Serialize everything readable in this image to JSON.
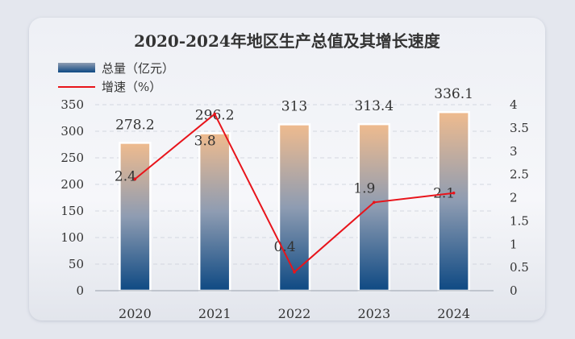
{
  "chart_data": {
    "type": "bar",
    "title": "2020-2024年地区生产总值及其增长速度",
    "categories": [
      "2020",
      "2021",
      "2022",
      "2023",
      "2024"
    ],
    "series": [
      {
        "name": "总量（亿元）",
        "type": "bar",
        "axis": "left",
        "values": [
          278.2,
          296.2,
          313,
          313.4,
          336.1
        ],
        "labels": [
          "278.2",
          "296.2",
          "313",
          "313.4",
          "336.1"
        ]
      },
      {
        "name": "增速（%）",
        "type": "line",
        "axis": "right",
        "values": [
          2.4,
          3.8,
          0.4,
          1.9,
          2.1
        ],
        "labels": [
          "2.4",
          "3.8",
          "0.4",
          "1.9",
          "2.1"
        ]
      }
    ],
    "y_left": {
      "min": 0,
      "max": 350,
      "ticks": [
        "0",
        "50",
        "100",
        "150",
        "200",
        "250",
        "300",
        "350"
      ]
    },
    "y_right": {
      "min": 0,
      "max": 4,
      "ticks": [
        "0",
        "0.5",
        "1",
        "1.5",
        "2",
        "2.5",
        "3",
        "3.5",
        "4"
      ]
    },
    "gridlines": true,
    "legend_position": "top-left",
    "colors": {
      "line": "#e8141b",
      "bar_top": "#efbb8e",
      "bar_mid": "#8e9cb2",
      "bar_bottom": "#0e4983",
      "grid": "#d3d7e0",
      "text": "#333333"
    }
  }
}
